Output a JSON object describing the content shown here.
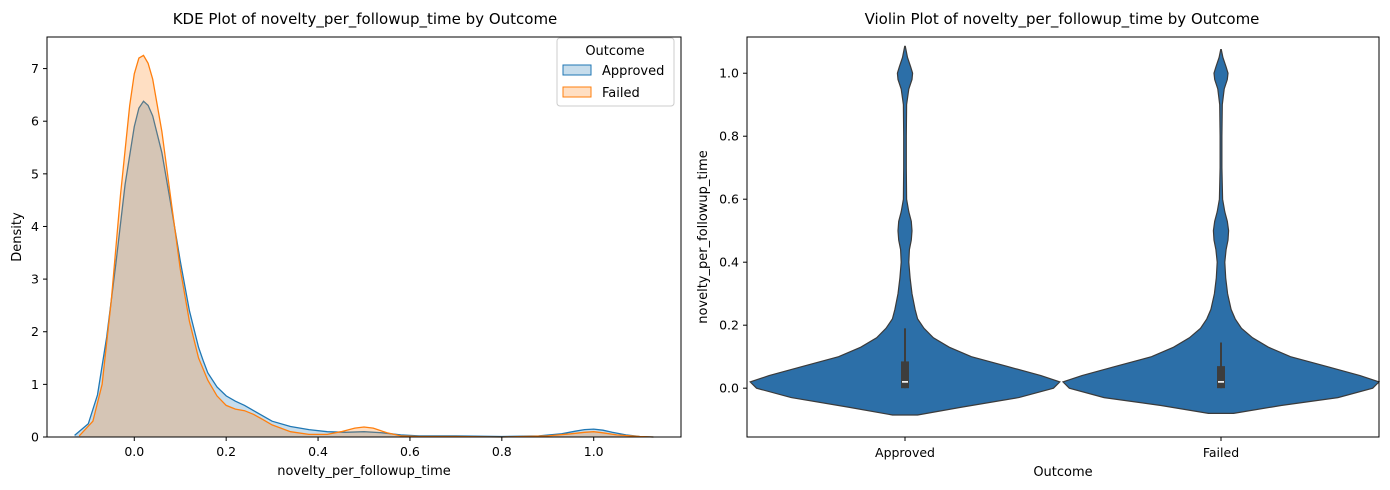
{
  "chart_data": [
    {
      "type": "area",
      "title": "KDE Plot of novelty_per_followup_time by Outcome",
      "xlabel": "novelty_per_followup_time",
      "ylabel": "Density",
      "xlim": [
        -0.19,
        1.19
      ],
      "ylim": [
        0,
        7.6
      ],
      "xticks": [
        0.0,
        0.2,
        0.4,
        0.6,
        0.8,
        1.0
      ],
      "xtick_labels": [
        "0.0",
        "0.2",
        "0.4",
        "0.6",
        "0.8",
        "1.0"
      ],
      "yticks": [
        0,
        1,
        2,
        3,
        4,
        5,
        6,
        7
      ],
      "ytick_labels": [
        "0",
        "1",
        "2",
        "3",
        "4",
        "5",
        "6",
        "7"
      ],
      "legend": {
        "title": "Outcome",
        "placement": "upper right"
      },
      "series": [
        {
          "name": "Approved",
          "color": "#1f77b4",
          "x": [
            -0.13,
            -0.1,
            -0.08,
            -0.06,
            -0.04,
            -0.02,
            0.0,
            0.01,
            0.02,
            0.03,
            0.04,
            0.06,
            0.08,
            0.1,
            0.12,
            0.14,
            0.15,
            0.16,
            0.18,
            0.2,
            0.22,
            0.24,
            0.26,
            0.28,
            0.3,
            0.34,
            0.38,
            0.42,
            0.46,
            0.5,
            0.54,
            0.58,
            0.62,
            0.7,
            0.8,
            0.88,
            0.93,
            0.96,
            0.98,
            1.0,
            1.02,
            1.04,
            1.07,
            1.1,
            1.13
          ],
          "y": [
            0.03,
            0.25,
            0.8,
            1.9,
            3.3,
            4.8,
            5.9,
            6.25,
            6.38,
            6.3,
            6.1,
            5.4,
            4.4,
            3.35,
            2.4,
            1.7,
            1.45,
            1.22,
            0.95,
            0.78,
            0.68,
            0.6,
            0.5,
            0.4,
            0.3,
            0.2,
            0.14,
            0.1,
            0.09,
            0.1,
            0.08,
            0.04,
            0.02,
            0.02,
            0.01,
            0.02,
            0.06,
            0.11,
            0.14,
            0.15,
            0.13,
            0.09,
            0.04,
            0.01,
            0.0
          ]
        },
        {
          "name": "Failed",
          "color": "#ff7f0e",
          "x": [
            -0.12,
            -0.09,
            -0.07,
            -0.05,
            -0.03,
            -0.01,
            0.0,
            0.01,
            0.02,
            0.03,
            0.04,
            0.06,
            0.08,
            0.1,
            0.12,
            0.14,
            0.16,
            0.18,
            0.2,
            0.22,
            0.24,
            0.26,
            0.28,
            0.3,
            0.34,
            0.38,
            0.42,
            0.45,
            0.48,
            0.5,
            0.52,
            0.55,
            0.58,
            0.62,
            0.7,
            0.8,
            0.9,
            0.95,
            0.98,
            1.0,
            1.02,
            1.05,
            1.1,
            1.13
          ],
          "y": [
            0.02,
            0.3,
            1.0,
            2.6,
            4.6,
            6.3,
            6.9,
            7.2,
            7.25,
            7.1,
            6.8,
            5.8,
            4.5,
            3.2,
            2.2,
            1.5,
            1.08,
            0.78,
            0.6,
            0.53,
            0.5,
            0.43,
            0.33,
            0.23,
            0.1,
            0.05,
            0.05,
            0.1,
            0.17,
            0.19,
            0.17,
            0.08,
            0.02,
            0.01,
            0.01,
            0.0,
            0.02,
            0.06,
            0.09,
            0.1,
            0.08,
            0.04,
            0.01,
            0.0
          ]
        }
      ]
    },
    {
      "type": "violin",
      "title": "Violin Plot of novelty_per_followup_time by Outcome",
      "xlabel": "Outcome",
      "ylabel": "novelty_per_followup_time",
      "categories": [
        "Approved",
        "Failed"
      ],
      "ylim": [
        -0.155,
        1.115
      ],
      "yticks": [
        0.0,
        0.2,
        0.4,
        0.6,
        0.8,
        1.0
      ],
      "ytick_labels": [
        "0.0",
        "0.2",
        "0.4",
        "0.6",
        "0.8",
        "1.0"
      ],
      "color": "#2c6fa8",
      "violins": [
        {
          "category": "Approved",
          "y": [
            -0.085,
            -0.06,
            -0.03,
            0.0,
            0.02,
            0.04,
            0.07,
            0.1,
            0.13,
            0.16,
            0.19,
            0.22,
            0.25,
            0.3,
            0.35,
            0.4,
            0.44,
            0.47,
            0.5,
            0.53,
            0.56,
            0.6,
            0.7,
            0.8,
            0.9,
            0.95,
            0.98,
            1.0,
            1.02,
            1.05,
            1.085
          ],
          "half_width": [
            0.04,
            0.18,
            0.36,
            0.47,
            0.49,
            0.43,
            0.32,
            0.21,
            0.14,
            0.09,
            0.06,
            0.04,
            0.032,
            0.022,
            0.016,
            0.012,
            0.014,
            0.02,
            0.022,
            0.02,
            0.012,
            0.005,
            0.004,
            0.004,
            0.005,
            0.012,
            0.022,
            0.024,
            0.018,
            0.008,
            0.001
          ],
          "q1": 0.0,
          "median": 0.02,
          "q3": 0.085,
          "whisker_low": 0.0,
          "whisker_high": 0.19
        },
        {
          "category": "Failed",
          "y": [
            -0.08,
            -0.055,
            -0.03,
            0.0,
            0.02,
            0.04,
            0.07,
            0.1,
            0.13,
            0.16,
            0.19,
            0.22,
            0.25,
            0.3,
            0.35,
            0.4,
            0.44,
            0.47,
            0.5,
            0.53,
            0.56,
            0.6,
            0.7,
            0.8,
            0.9,
            0.95,
            0.98,
            1.0,
            1.02,
            1.05,
            1.075
          ],
          "half_width": [
            0.04,
            0.19,
            0.37,
            0.48,
            0.5,
            0.44,
            0.33,
            0.22,
            0.15,
            0.1,
            0.065,
            0.045,
            0.032,
            0.021,
            0.015,
            0.012,
            0.016,
            0.022,
            0.024,
            0.02,
            0.012,
            0.005,
            0.003,
            0.003,
            0.004,
            0.01,
            0.02,
            0.022,
            0.016,
            0.006,
            0.001
          ],
          "q1": 0.0,
          "median": 0.02,
          "q3": 0.07,
          "whisker_low": 0.0,
          "whisker_high": 0.145
        }
      ]
    }
  ]
}
